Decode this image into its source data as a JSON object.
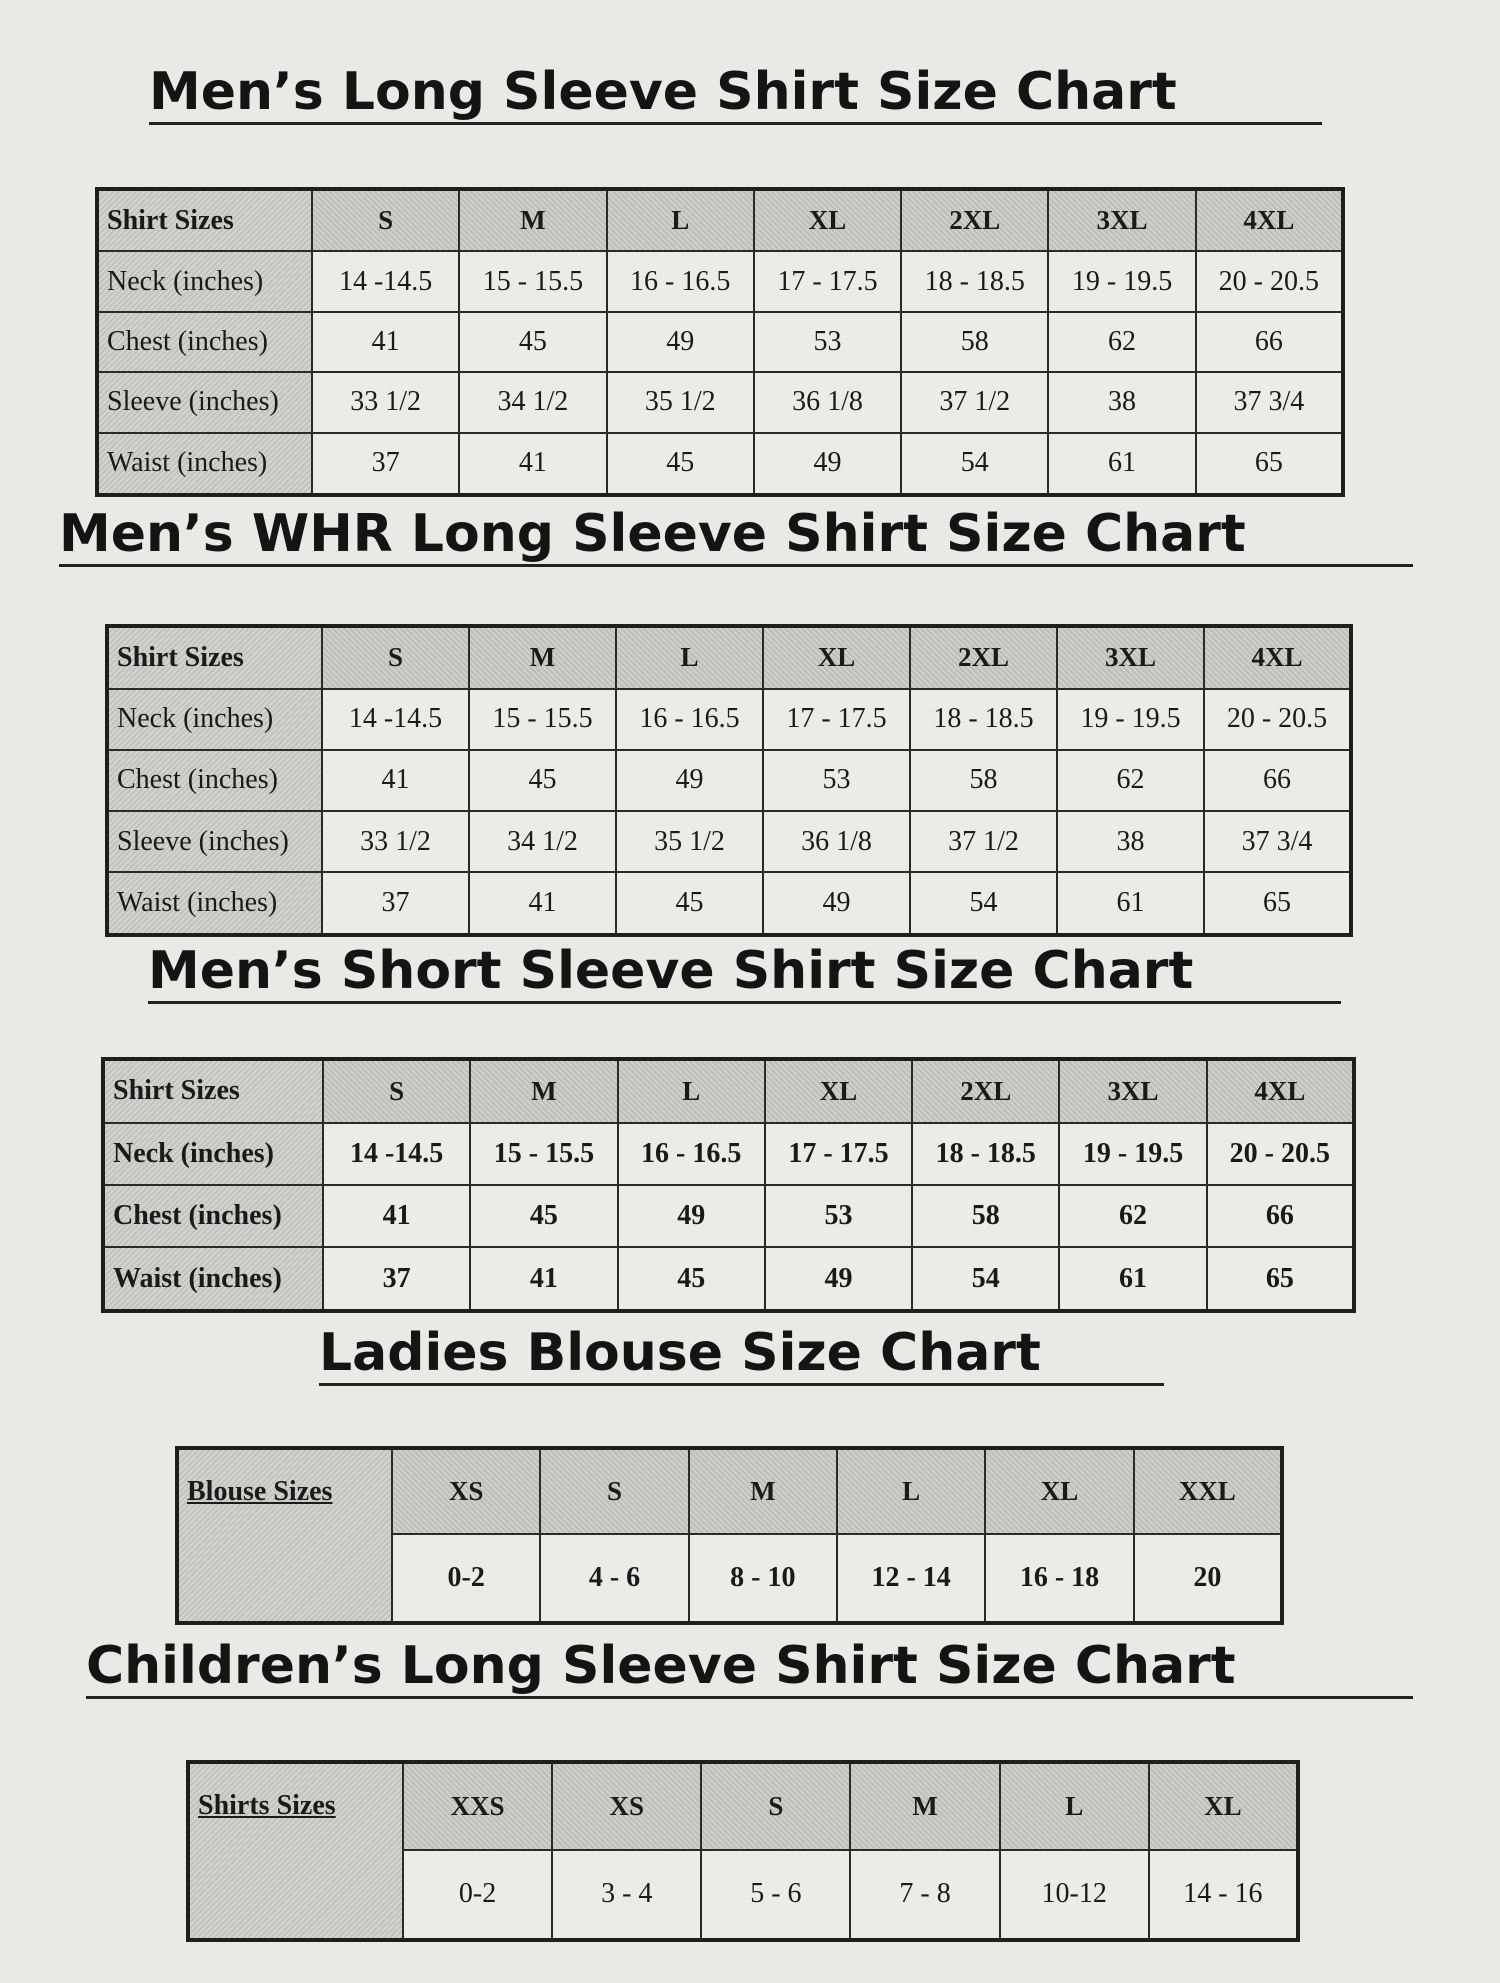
{
  "charts": [
    {
      "title": "Men’s Long Sleeve Shirt Size Chart",
      "header_label": "Shirt Sizes",
      "sizes": [
        "S",
        "M",
        "L",
        "XL",
        "2XL",
        "3XL",
        "4XL"
      ],
      "rows": [
        {
          "label": "Neck (inches)",
          "values": [
            "14 -14.5",
            "15 - 15.5",
            "16 - 16.5",
            "17 - 17.5",
            "18 - 18.5",
            "19 - 19.5",
            "20 - 20.5"
          ]
        },
        {
          "label": "Chest (inches)",
          "values": [
            "41",
            "45",
            "49",
            "53",
            "58",
            "62",
            "66"
          ]
        },
        {
          "label": "Sleeve (inches)",
          "values": [
            "33 1/2",
            "34 1/2",
            "35 1/2",
            "36 1/8",
            "37 1/2",
            "38",
            "37 3/4"
          ]
        },
        {
          "label": "Waist (inches)",
          "values": [
            "37",
            "41",
            "45",
            "49",
            "54",
            "61",
            "65"
          ]
        }
      ]
    },
    {
      "title": "Men’s WHR Long Sleeve Shirt Size Chart",
      "header_label": "Shirt Sizes",
      "sizes": [
        "S",
        "M",
        "L",
        "XL",
        "2XL",
        "3XL",
        "4XL"
      ],
      "rows": [
        {
          "label": "Neck (inches)",
          "values": [
            "14 -14.5",
            "15 - 15.5",
            "16 - 16.5",
            "17 - 17.5",
            "18 - 18.5",
            "19 - 19.5",
            "20 - 20.5"
          ]
        },
        {
          "label": "Chest (inches)",
          "values": [
            "41",
            "45",
            "49",
            "53",
            "58",
            "62",
            "66"
          ]
        },
        {
          "label": "Sleeve (inches)",
          "values": [
            "33 1/2",
            "34 1/2",
            "35 1/2",
            "36 1/8",
            "37 1/2",
            "38",
            "37 3/4"
          ]
        },
        {
          "label": "Waist (inches)",
          "values": [
            "37",
            "41",
            "45",
            "49",
            "54",
            "61",
            "65"
          ]
        }
      ]
    },
    {
      "title": "Men’s Short Sleeve Shirt Size Chart",
      "header_label": "Shirt Sizes",
      "sizes": [
        "S",
        "M",
        "L",
        "XL",
        "2XL",
        "3XL",
        "4XL"
      ],
      "rows": [
        {
          "label": "Neck (inches)",
          "values": [
            "14 -14.5",
            "15 - 15.5",
            "16 - 16.5",
            "17 - 17.5",
            "18 - 18.5",
            "19 - 19.5",
            "20 - 20.5"
          ]
        },
        {
          "label": "Chest (inches)",
          "values": [
            "41",
            "45",
            "49",
            "53",
            "58",
            "62",
            "66"
          ]
        },
        {
          "label": "Waist (inches)",
          "values": [
            "37",
            "41",
            "45",
            "49",
            "54",
            "61",
            "65"
          ]
        }
      ]
    },
    {
      "title": "Ladies Blouse Size Chart",
      "header_label": "Blouse Sizes",
      "sizes": [
        "XS",
        "S",
        "M",
        "L",
        "XL",
        "XXL"
      ],
      "rows": [
        {
          "label": "",
          "values": [
            "0-2",
            "4 - 6",
            "8 - 10",
            "12 - 14",
            "16 - 18",
            "20"
          ]
        }
      ]
    },
    {
      "title": "Children’s Long Sleeve Shirt Size Chart",
      "header_label": "Shirts Sizes",
      "sizes": [
        "XXS",
        "XS",
        "S",
        "M",
        "L",
        "XL"
      ],
      "rows": [
        {
          "label": "",
          "values": [
            "0-2",
            "3 - 4",
            "5 - 6",
            "7 - 8",
            "10-12",
            "14 - 16"
          ]
        }
      ]
    }
  ]
}
